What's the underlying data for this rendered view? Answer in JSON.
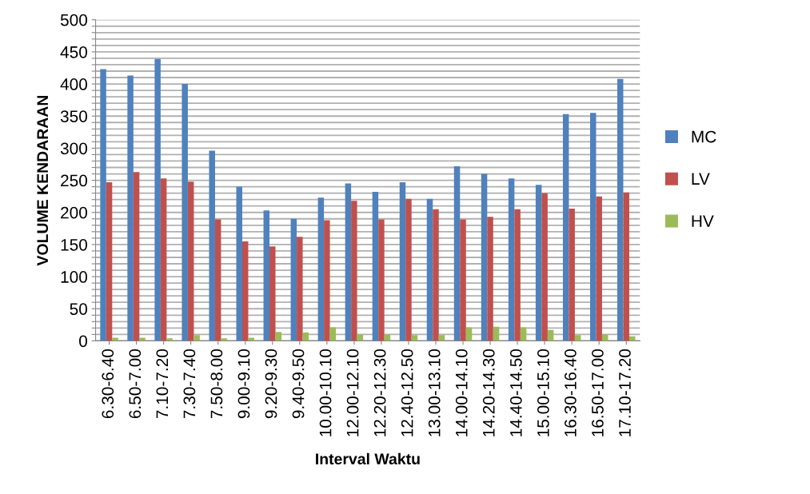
{
  "chart_data": {
    "type": "bar",
    "xlabel": "Interval Waktu",
    "ylabel": "VOLUME KENDARAAN",
    "categories": [
      "6.30-6.40",
      "6.50-7.00",
      "7.10-7.20",
      "7.30-7.40",
      "7.50-8.00",
      "9.00-9.10",
      "9.20-9.30",
      "9.40-9.50",
      "10.00-10.10",
      "12.00-12.10",
      "12.20-12.30",
      "12.40-12.50",
      "13.00-13.10",
      "14.00-14.10",
      "14.20-14.30",
      "14.40-14.50",
      "15.00-15.10",
      "16.30-16.40",
      "16.50-17.00",
      "17.10-17.20"
    ],
    "series": [
      {
        "name": "MC",
        "color": "#4f81bd",
        "values": [
          423,
          413,
          439,
          400,
          296,
          240,
          203,
          190,
          223,
          245,
          232,
          247,
          221,
          272,
          260,
          253,
          243,
          353,
          355,
          408
        ]
      },
      {
        "name": "LV",
        "color": "#c0504d",
        "values": [
          247,
          263,
          253,
          248,
          189,
          155,
          147,
          162,
          188,
          218,
          189,
          221,
          205,
          189,
          193,
          205,
          230,
          206,
          225,
          231
        ]
      },
      {
        "name": "HV",
        "color": "#9bbb59",
        "values": [
          5,
          5,
          4,
          9,
          4,
          5,
          14,
          13,
          21,
          10,
          10,
          9,
          9,
          21,
          22,
          21,
          17,
          9,
          10,
          7
        ]
      }
    ],
    "ylim": [
      0,
      500
    ],
    "yticks": [
      0,
      {
        "value": 10,
        "label": null
      },
      {
        "value": 20,
        "label": null
      },
      {
        "value": 30,
        "label": null
      },
      {
        "value": 40,
        "label": null
      },
      50,
      {
        "value": 60,
        "label": null
      },
      {
        "value": 70,
        "label": null
      },
      {
        "value": 80,
        "label": null
      },
      {
        "value": 90,
        "label": null
      },
      100,
      {
        "value": 110,
        "label": null
      },
      {
        "value": 120,
        "label": null
      },
      {
        "value": 130,
        "label": null
      },
      {
        "value": 140,
        "label": null
      },
      150,
      {
        "value": 160,
        "label": null
      },
      {
        "value": 170,
        "label": null
      },
      {
        "value": 180,
        "label": null
      },
      {
        "value": 190,
        "label": null
      },
      200,
      {
        "value": 210,
        "label": null
      },
      {
        "value": 220,
        "label": null
      },
      {
        "value": 230,
        "label": null
      },
      {
        "value": 240,
        "label": null
      },
      250,
      {
        "value": 260,
        "label": null
      },
      {
        "value": 270,
        "label": null
      },
      {
        "value": 280,
        "label": null
      },
      {
        "value": 290,
        "label": null
      },
      300,
      {
        "value": 310,
        "label": null
      },
      {
        "value": 320,
        "label": null
      },
      {
        "value": 330,
        "label": null
      },
      {
        "value": 340,
        "label": null
      },
      350,
      {
        "value": 360,
        "label": null
      },
      {
        "value": 370,
        "label": null
      },
      {
        "value": 380,
        "label": null
      },
      {
        "value": 390,
        "label": null
      },
      400,
      {
        "value": 410,
        "label": null
      },
      {
        "value": 420,
        "label": null
      },
      {
        "value": 430,
        "label": null
      },
      {
        "value": 440,
        "label": null
      },
      450,
      {
        "value": 460,
        "label": null
      },
      {
        "value": 470,
        "label": null
      },
      {
        "value": 480,
        "label": null
      },
      {
        "value": 490,
        "label": null
      },
      500
    ],
    "grid": "y",
    "legend": "right"
  }
}
